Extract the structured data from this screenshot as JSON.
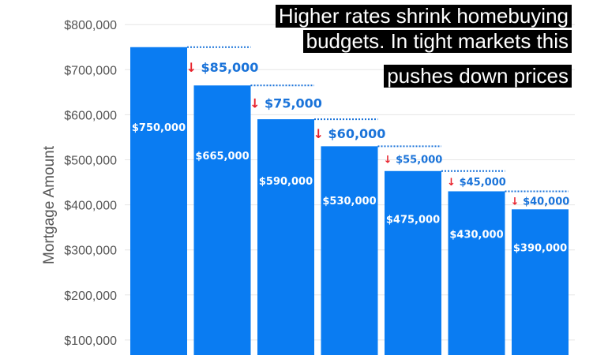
{
  "chart_data": {
    "type": "bar",
    "title_lines": [
      "Higher rates shrink homebuying",
      "budgets. In tight markets this",
      "pushes down prices"
    ],
    "ylabel": "Mortgage Amount",
    "ylim": [
      0,
      820000
    ],
    "y_ticks": [
      {
        "value": 100000,
        "label": "$100,000"
      },
      {
        "value": 200000,
        "label": "$200,000"
      },
      {
        "value": 300000,
        "label": "$300,000"
      },
      {
        "value": 400000,
        "label": "$400,000"
      },
      {
        "value": 500000,
        "label": "$500,000"
      },
      {
        "value": 600000,
        "label": "$600,000"
      },
      {
        "value": 700000,
        "label": "$700,000"
      },
      {
        "value": 800000,
        "label": "$800,000"
      }
    ],
    "grid": true,
    "values": [
      750000,
      665000,
      590000,
      530000,
      475000,
      430000,
      390000
    ],
    "value_labels": [
      "$750,000",
      "$665,000",
      "$590,000",
      "$530,000",
      "$475,000",
      "$430,000",
      "$390,000"
    ],
    "drops": [
      85000,
      75000,
      60000,
      55000,
      45000,
      40000
    ],
    "drop_labels": [
      "↓ $85,000",
      "↓ $75,000",
      "↓ $60,000",
      "↓ $55,000",
      "↓ $45,000",
      "↓ $40,000"
    ],
    "colors": {
      "bar": "#0a7cf2",
      "arrow": "#e8212b",
      "drop_text": "#1a73d9",
      "grid": "#e6e6e6"
    }
  }
}
